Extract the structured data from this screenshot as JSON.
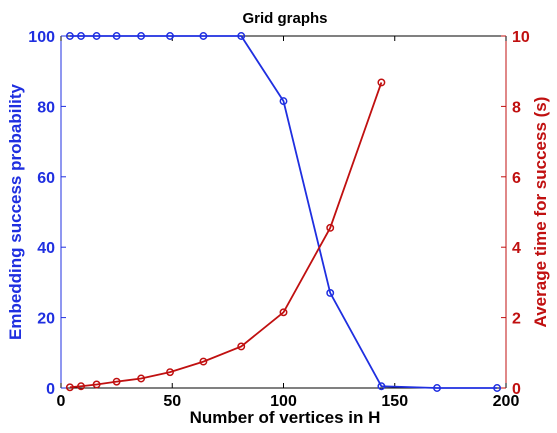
{
  "chart_data": {
    "type": "line",
    "title": "Grid graphs",
    "xlabel": "Number of vertices in H",
    "ylabel_left": "Embedding success probability",
    "ylabel_right": "Average time for success (s)",
    "xlim": [
      0,
      200
    ],
    "ylim_left": [
      0,
      100
    ],
    "ylim_right": [
      0,
      10
    ],
    "x_ticks": [
      0,
      50,
      100,
      150,
      200
    ],
    "y_left_ticks": [
      0,
      20,
      40,
      60,
      80,
      100
    ],
    "y_right_ticks": [
      0,
      2,
      4,
      6,
      8,
      10
    ],
    "grid": false,
    "colors": {
      "left": "#1f2fe0",
      "right": "#c01010",
      "axis": "#000000"
    },
    "series": [
      {
        "axis": "left",
        "x": [
          4,
          9,
          16,
          25,
          36,
          49,
          64,
          81,
          100,
          121,
          144,
          169,
          196
        ],
        "values": [
          100,
          100,
          100,
          100,
          100,
          100,
          100,
          100,
          81.5,
          27,
          0.5,
          0,
          0
        ]
      },
      {
        "axis": "right",
        "x": [
          4,
          9,
          16,
          25,
          36,
          49,
          64,
          81,
          100,
          121,
          144
        ],
        "values": [
          0.02,
          0.05,
          0.1,
          0.18,
          0.27,
          0.45,
          0.75,
          1.18,
          2.15,
          4.55,
          8.68
        ]
      }
    ]
  }
}
